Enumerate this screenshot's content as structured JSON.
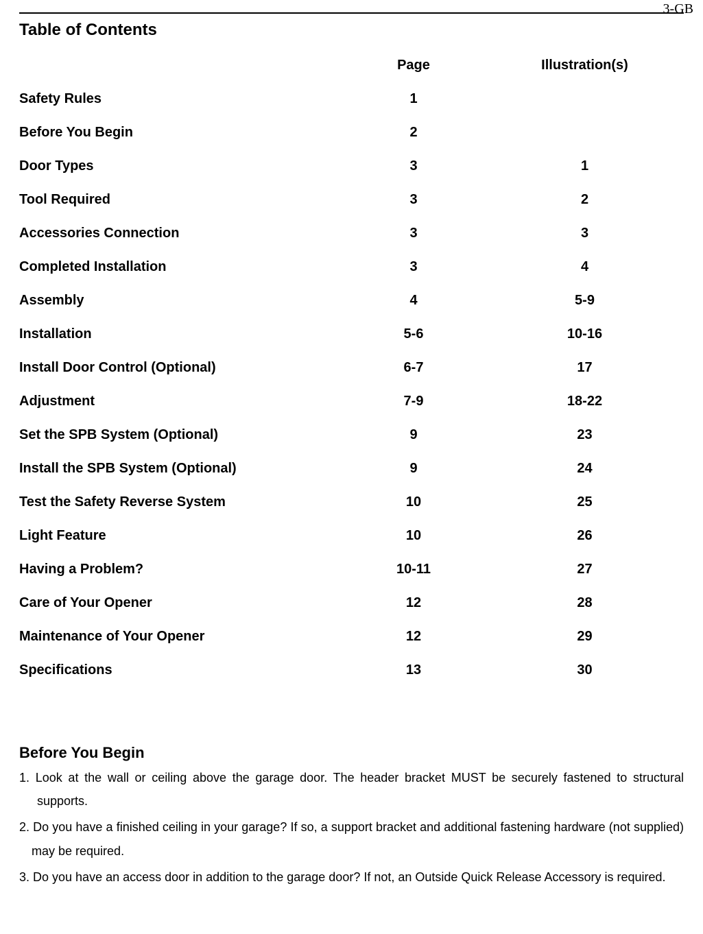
{
  "page_label": "3-GB",
  "colors": {
    "text": "#000000",
    "background": "#ffffff",
    "rule": "#000000"
  },
  "fonts": {
    "body_family": "Arial, Helvetica, sans-serif",
    "page_number_family": "Times New Roman, serif",
    "section_title_pt": 18,
    "row_pt": 15,
    "body_pt": 13
  },
  "toc": {
    "title": "Table of Contents",
    "columns": {
      "topic": "",
      "page": "Page",
      "illustrations": "Illustration(s)"
    },
    "rows": [
      {
        "topic": "Safety Rules",
        "page": "1",
        "illus": ""
      },
      {
        "topic": "Before You Begin",
        "page": "2",
        "illus": ""
      },
      {
        "topic": "Door Types",
        "page": "3",
        "illus": "1"
      },
      {
        "topic": "Tool Required",
        "page": "3",
        "illus": "2"
      },
      {
        "topic": "Accessories Connection",
        "page": "3",
        "illus": "3"
      },
      {
        "topic": "Completed Installation",
        "page": "3",
        "illus": "4"
      },
      {
        "topic": "Assembly",
        "page": "4",
        "illus": "5-9"
      },
      {
        "topic": "Installation",
        "page": "5-6",
        "illus": "10-16"
      },
      {
        "topic": "Install Door Control (Optional)",
        "page": "6-7",
        "illus": "17"
      },
      {
        "topic": "Adjustment",
        "page": "7-9",
        "illus": "18-22"
      },
      {
        "topic": "Set the SPB System (Optional)",
        "page": "9",
        "illus": "23"
      },
      {
        "topic": "Install the SPB System (Optional)",
        "page": "9",
        "illus": "24"
      },
      {
        "topic": "Test the Safety Reverse System",
        "page": "10",
        "illus": "25"
      },
      {
        "topic": "Light Feature",
        "page": "10",
        "illus": "26"
      },
      {
        "topic": "Having a Problem?",
        "page": "10-11",
        "illus": "27"
      },
      {
        "topic": "Care of Your Opener",
        "page": "12",
        "illus": "28"
      },
      {
        "topic": "Maintenance of Your Opener",
        "page": "12",
        "illus": "29"
      },
      {
        "topic": "Specifications",
        "page": "13",
        "illus": "30"
      }
    ]
  },
  "before_you_begin": {
    "title": "Before You Begin",
    "items": [
      "1.  Look at the wall or ceiling above the garage door. The header bracket MUST be securely fastened to structural supports.",
      "2. Do you have a finished ceiling in your garage? If so, a support bracket and additional fastening hardware (not supplied) may be required.",
      "3. Do you have an access door in addition to the garage door? If not, an Outside Quick Release Accessory is required."
    ]
  }
}
